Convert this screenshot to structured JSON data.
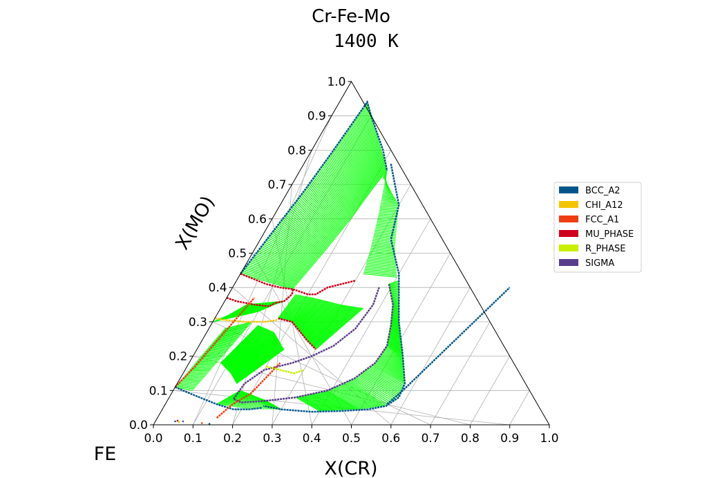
{
  "chart_data": {
    "type": "ternary",
    "title": "Cr-Fe-Mo",
    "subtitle": "1400 K",
    "xlabel": "X(CR)",
    "ylabel": "X(MO)",
    "corner_label": "FE",
    "xlim": [
      0,
      1
    ],
    "ylim": [
      0,
      1
    ],
    "grid": true,
    "legend_position": "right",
    "x_ticks": [
      "0.0",
      "0.1",
      "0.2",
      "0.3",
      "0.4",
      "0.5",
      "0.6",
      "0.7",
      "0.8",
      "0.9",
      "1.0"
    ],
    "y_ticks": [
      "0.0",
      "0.1",
      "0.2",
      "0.3",
      "0.4",
      "0.5",
      "0.6",
      "0.7",
      "0.8",
      "0.9",
      "1.0"
    ],
    "legend": [
      {
        "name": "BCC_A2",
        "color": "#00568c"
      },
      {
        "name": "CHI_A12",
        "color": "#f5c400"
      },
      {
        "name": "FCC_A1",
        "color": "#f03c14"
      },
      {
        "name": "MU_PHASE",
        "color": "#d0001c"
      },
      {
        "name": "R_PHASE",
        "color": "#c8ee00"
      },
      {
        "name": "SIGMA",
        "color": "#5a3c8c"
      }
    ],
    "tieline_color": "#00ff00",
    "boundaries": {
      "bcc_mo_rich": [
        [
          0.0,
          0.44
        ],
        [
          0.02,
          0.56
        ],
        [
          0.04,
          0.68
        ],
        [
          0.055,
          0.8
        ],
        [
          0.07,
          0.94
        ],
        [
          0.1,
          0.9
        ],
        [
          0.18,
          0.8
        ],
        [
          0.22,
          0.74
        ]
      ],
      "bcc_cr_rich": [
        [
          0.22,
          0.76
        ],
        [
          0.3,
          0.64
        ],
        [
          0.33,
          0.54
        ],
        [
          0.4,
          0.44
        ],
        [
          0.47,
          0.3
        ],
        [
          0.53,
          0.2
        ],
        [
          0.575,
          0.12
        ],
        [
          0.58,
          0.08
        ],
        [
          0.56,
          0.055
        ],
        [
          0.52,
          0.045
        ],
        [
          0.45,
          0.04
        ],
        [
          0.38,
          0.038
        ],
        [
          0.3,
          0.045
        ],
        [
          0.25,
          0.055
        ]
      ],
      "bcc_fe_rich": [
        [
          0.0,
          0.11
        ],
        [
          0.05,
          0.09
        ],
        [
          0.09,
          0.075
        ],
        [
          0.13,
          0.06
        ],
        [
          0.18,
          0.045
        ],
        [
          0.22,
          0.045
        ],
        [
          0.25,
          0.05
        ]
      ],
      "sigma_inner": [
        [
          0.39,
          0.41
        ],
        [
          0.43,
          0.35
        ],
        [
          0.455,
          0.29
        ],
        [
          0.475,
          0.23
        ],
        [
          0.47,
          0.18
        ],
        [
          0.44,
          0.135
        ],
        [
          0.39,
          0.1
        ],
        [
          0.32,
          0.08
        ],
        [
          0.25,
          0.07
        ],
        [
          0.19,
          0.065
        ],
        [
          0.165,
          0.075
        ]
      ],
      "sigma_left": [
        [
          0.165,
          0.075
        ],
        [
          0.17,
          0.12
        ],
        [
          0.2,
          0.16
        ],
        [
          0.26,
          0.18
        ],
        [
          0.3,
          0.2
        ],
        [
          0.34,
          0.23
        ],
        [
          0.37,
          0.28
        ],
        [
          0.38,
          0.35
        ],
        [
          0.37,
          0.4
        ]
      ],
      "mu_upper": [
        [
          0.0,
          0.44
        ],
        [
          0.04,
          0.425
        ],
        [
          0.08,
          0.41
        ],
        [
          0.12,
          0.4
        ],
        [
          0.155,
          0.395
        ],
        [
          0.16,
          0.38
        ],
        [
          0.15,
          0.36
        ],
        [
          0.13,
          0.355
        ]
      ],
      "mu_left": [
        [
          0.0,
          0.37
        ],
        [
          0.03,
          0.36
        ],
        [
          0.08,
          0.35
        ],
        [
          0.12,
          0.345
        ],
        [
          0.13,
          0.355
        ]
      ],
      "chi_band": [
        [
          0.0,
          0.31
        ],
        [
          0.03,
          0.305
        ],
        [
          0.08,
          0.3
        ],
        [
          0.13,
          0.3
        ],
        [
          0.16,
          0.305
        ]
      ],
      "fcc_left": [
        [
          0.0,
          0.11
        ],
        [
          0.02,
          0.17
        ],
        [
          0.04,
          0.25
        ],
        [
          0.06,
          0.33
        ],
        [
          0.07,
          0.37
        ]
      ],
      "fcc_lower": [
        [
          0.15,
          0.02
        ],
        [
          0.17,
          0.06
        ],
        [
          0.2,
          0.09
        ],
        [
          0.22,
          0.15
        ],
        [
          0.23,
          0.18
        ]
      ],
      "mu_center": [
        [
          0.155,
          0.395
        ],
        [
          0.2,
          0.38
        ],
        [
          0.22,
          0.38
        ],
        [
          0.24,
          0.4
        ],
        [
          0.3,
          0.42
        ]
      ],
      "r_phase": [
        [
          0.2,
          0.17
        ],
        [
          0.24,
          0.16
        ],
        [
          0.28,
          0.15
        ],
        [
          0.3,
          0.16
        ]
      ],
      "mu_mid": [
        [
          0.16,
          0.31
        ],
        [
          0.2,
          0.3
        ],
        [
          0.26,
          0.25
        ],
        [
          0.3,
          0.22
        ]
      ],
      "sigma_cr_rich": [
        [
          0.56,
          0.06
        ],
        [
          0.58,
          0.1
        ],
        [
          0.6,
          0.15
        ],
        [
          0.62,
          0.2
        ],
        [
          0.64,
          0.25
        ],
        [
          0.66,
          0.3
        ],
        [
          0.68,
          0.35
        ],
        [
          0.7,
          0.4
        ]
      ]
    },
    "tieline_regions": [
      {
        "from": [
          [
            0.0,
            0.44
          ],
          [
            0.02,
            0.56
          ],
          [
            0.04,
            0.68
          ],
          [
            0.055,
            0.8
          ],
          [
            0.07,
            0.94
          ]
        ],
        "to": [
          [
            0.155,
            0.395
          ],
          [
            0.18,
            0.5
          ],
          [
            0.2,
            0.6
          ],
          [
            0.21,
            0.68
          ],
          [
            0.22,
            0.74
          ]
        ],
        "count": 120
      },
      {
        "from": [
          [
            0.22,
            0.74
          ],
          [
            0.26,
            0.62
          ],
          [
            0.29,
            0.52
          ],
          [
            0.31,
            0.44
          ]
        ],
        "to": [
          [
            0.22,
            0.72
          ],
          [
            0.3,
            0.64
          ],
          [
            0.35,
            0.52
          ],
          [
            0.4,
            0.43
          ]
        ],
        "count": 70
      },
      {
        "from": [
          [
            0.39,
            0.41
          ],
          [
            0.43,
            0.35
          ],
          [
            0.455,
            0.29
          ],
          [
            0.475,
            0.23
          ],
          [
            0.47,
            0.18
          ],
          [
            0.44,
            0.135
          ],
          [
            0.39,
            0.1
          ],
          [
            0.32,
            0.08
          ]
        ],
        "to": [
          [
            0.41,
            0.42
          ],
          [
            0.47,
            0.3
          ],
          [
            0.53,
            0.2
          ],
          [
            0.575,
            0.12
          ],
          [
            0.58,
            0.08
          ],
          [
            0.56,
            0.055
          ],
          [
            0.5,
            0.045
          ],
          [
            0.4,
            0.04
          ]
        ],
        "count": 140
      },
      {
        "from": [
          [
            0.25,
            0.07
          ],
          [
            0.2,
            0.09
          ],
          [
            0.17,
            0.1
          ]
        ],
        "to": [
          [
            0.3,
            0.045
          ],
          [
            0.22,
            0.045
          ],
          [
            0.13,
            0.06
          ]
        ],
        "count": 40
      },
      {
        "from": [
          [
            0.0,
            0.11
          ],
          [
            0.02,
            0.2
          ],
          [
            0.04,
            0.28
          ]
        ],
        "to": [
          [
            0.05,
            0.1
          ],
          [
            0.08,
            0.22
          ],
          [
            0.1,
            0.3
          ]
        ],
        "count": 50
      },
      {
        "from": [
          [
            0.0,
            0.3
          ],
          [
            0.03,
            0.32
          ],
          [
            0.06,
            0.35
          ]
        ],
        "to": [
          [
            0.1,
            0.33
          ],
          [
            0.13,
            0.35
          ],
          [
            0.15,
            0.36
          ]
        ],
        "count": 40
      },
      {
        "from": [
          [
            0.16,
            0.31
          ],
          [
            0.2,
            0.3
          ],
          [
            0.26,
            0.25
          ],
          [
            0.3,
            0.22
          ]
        ],
        "to": [
          [
            0.17,
            0.38
          ],
          [
            0.22,
            0.37
          ],
          [
            0.3,
            0.35
          ],
          [
            0.36,
            0.34
          ]
        ],
        "count": 60
      },
      {
        "from": [
          [
            0.08,
            0.18
          ],
          [
            0.12,
            0.15
          ],
          [
            0.15,
            0.12
          ]
        ],
        "to": [
          [
            0.12,
            0.29
          ],
          [
            0.17,
            0.27
          ],
          [
            0.22,
            0.22
          ]
        ],
        "count": 45
      }
    ],
    "stray_points": [
      [
        0.05,
        0.01
      ],
      [
        0.055,
        0.012
      ],
      [
        0.06,
        0.008
      ],
      [
        0.07,
        0.01
      ],
      [
        0.12,
        0.005
      ],
      [
        0.14,
        0.003
      ]
    ]
  }
}
